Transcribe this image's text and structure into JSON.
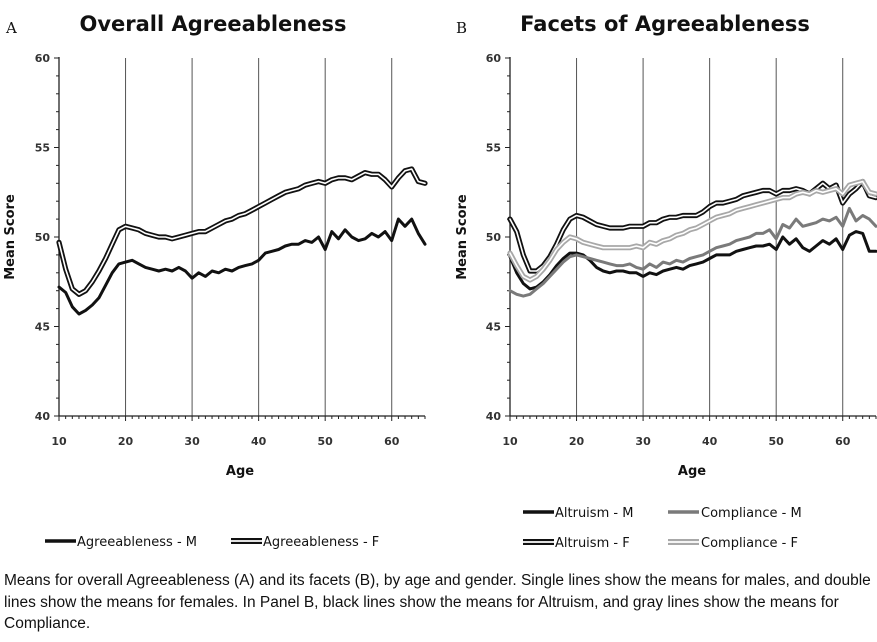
{
  "chart_data": [
    {
      "type": "line",
      "panel_label": "A",
      "title": "Overall Agreeableness",
      "xlabel": "Age",
      "ylabel": "Mean Score",
      "xlim": [
        10,
        65
      ],
      "ylim": [
        40,
        60
      ],
      "xticks": [
        10,
        20,
        30,
        40,
        50,
        60
      ],
      "yticks": [
        40,
        45,
        50,
        55,
        60
      ],
      "vgrid": [
        20,
        30,
        40,
        50,
        60
      ],
      "legend": "bottom",
      "series": [
        {
          "name": "Agreeableness - M",
          "color": "#111111",
          "style": "single",
          "x": [
            10,
            11,
            12,
            13,
            14,
            15,
            16,
            17,
            18,
            19,
            20,
            21,
            22,
            23,
            24,
            25,
            26,
            27,
            28,
            29,
            30,
            31,
            32,
            33,
            34,
            35,
            36,
            37,
            38,
            39,
            40,
            41,
            42,
            43,
            44,
            45,
            46,
            47,
            48,
            49,
            50,
            51,
            52,
            53,
            54,
            55,
            56,
            57,
            58,
            59,
            60,
            61,
            62,
            63,
            64,
            65
          ],
          "y": [
            47.2,
            46.9,
            46.1,
            45.7,
            45.9,
            46.2,
            46.6,
            47.3,
            48.0,
            48.5,
            48.6,
            48.7,
            48.5,
            48.3,
            48.2,
            48.1,
            48.2,
            48.1,
            48.3,
            48.1,
            47.7,
            48.0,
            47.8,
            48.1,
            48.0,
            48.2,
            48.1,
            48.3,
            48.4,
            48.5,
            48.7,
            49.1,
            49.2,
            49.3,
            49.5,
            49.6,
            49.6,
            49.8,
            49.7,
            50.0,
            49.3,
            50.3,
            49.9,
            50.4,
            50.0,
            49.8,
            49.9,
            50.2,
            50.0,
            50.3,
            49.8,
            51.0,
            50.6,
            51.0,
            50.2,
            49.6
          ]
        },
        {
          "name": "Agreeableness - F",
          "color": "#111111",
          "style": "double",
          "x": [
            10,
            11,
            12,
            13,
            14,
            15,
            16,
            17,
            18,
            19,
            20,
            21,
            22,
            23,
            24,
            25,
            26,
            27,
            28,
            29,
            30,
            31,
            32,
            33,
            34,
            35,
            36,
            37,
            38,
            39,
            40,
            41,
            42,
            43,
            44,
            45,
            46,
            47,
            48,
            49,
            50,
            51,
            52,
            53,
            54,
            55,
            56,
            57,
            58,
            59,
            60,
            61,
            62,
            63,
            64,
            65
          ],
          "y": [
            49.7,
            48.2,
            47.1,
            46.8,
            47.0,
            47.5,
            48.1,
            48.8,
            49.6,
            50.4,
            50.6,
            50.5,
            50.4,
            50.2,
            50.1,
            50.0,
            50.0,
            49.9,
            50.0,
            50.1,
            50.2,
            50.3,
            50.3,
            50.5,
            50.7,
            50.9,
            51.0,
            51.2,
            51.3,
            51.5,
            51.7,
            51.9,
            52.1,
            52.3,
            52.5,
            52.6,
            52.7,
            52.9,
            53.0,
            53.1,
            53.0,
            53.2,
            53.3,
            53.3,
            53.2,
            53.4,
            53.6,
            53.5,
            53.5,
            53.2,
            52.8,
            53.3,
            53.7,
            53.8,
            53.1,
            53.0
          ]
        }
      ]
    },
    {
      "type": "line",
      "panel_label": "B",
      "title": "Facets of Agreeableness",
      "xlabel": "Age",
      "ylabel": "Mean Score",
      "xlim": [
        10,
        65
      ],
      "ylim": [
        40,
        60
      ],
      "xticks": [
        10,
        20,
        30,
        40,
        50,
        60
      ],
      "yticks": [
        40,
        45,
        50,
        55,
        60
      ],
      "vgrid": [
        20,
        30,
        40,
        50,
        60
      ],
      "legend": "bottom",
      "series": [
        {
          "name": "Altruism - M",
          "color": "#111111",
          "style": "single",
          "x": [
            10,
            11,
            12,
            13,
            14,
            15,
            16,
            17,
            18,
            19,
            20,
            21,
            22,
            23,
            24,
            25,
            26,
            27,
            28,
            29,
            30,
            31,
            32,
            33,
            34,
            35,
            36,
            37,
            38,
            39,
            40,
            41,
            42,
            43,
            44,
            45,
            46,
            47,
            48,
            49,
            50,
            51,
            52,
            53,
            54,
            55,
            56,
            57,
            58,
            59,
            60,
            61,
            62,
            63,
            64,
            65
          ],
          "y": [
            48.9,
            48.0,
            47.4,
            47.1,
            47.2,
            47.5,
            47.9,
            48.4,
            48.8,
            49.1,
            49.1,
            49.0,
            48.7,
            48.3,
            48.1,
            48.0,
            48.1,
            48.1,
            48.0,
            48.0,
            47.8,
            48.0,
            47.9,
            48.1,
            48.2,
            48.3,
            48.2,
            48.4,
            48.5,
            48.6,
            48.8,
            49.0,
            49.0,
            49.0,
            49.2,
            49.3,
            49.4,
            49.5,
            49.5,
            49.6,
            49.3,
            50.0,
            49.6,
            49.9,
            49.4,
            49.2,
            49.5,
            49.8,
            49.6,
            49.9,
            49.3,
            50.1,
            50.3,
            50.2,
            49.2,
            49.2
          ]
        },
        {
          "name": "Compliance - M",
          "color": "#7a7a7a",
          "style": "single",
          "x": [
            10,
            11,
            12,
            13,
            14,
            15,
            16,
            17,
            18,
            19,
            20,
            21,
            22,
            23,
            24,
            25,
            26,
            27,
            28,
            29,
            30,
            31,
            32,
            33,
            34,
            35,
            36,
            37,
            38,
            39,
            40,
            41,
            42,
            43,
            44,
            45,
            46,
            47,
            48,
            49,
            50,
            51,
            52,
            53,
            54,
            55,
            56,
            57,
            58,
            59,
            60,
            61,
            62,
            63,
            64,
            65
          ],
          "y": [
            47.0,
            46.8,
            46.7,
            46.8,
            47.1,
            47.4,
            47.8,
            48.2,
            48.6,
            48.9,
            49.0,
            48.9,
            48.8,
            48.7,
            48.6,
            48.5,
            48.4,
            48.4,
            48.5,
            48.3,
            48.2,
            48.5,
            48.3,
            48.6,
            48.5,
            48.7,
            48.6,
            48.8,
            48.9,
            49.0,
            49.2,
            49.4,
            49.5,
            49.6,
            49.8,
            49.9,
            50.0,
            50.2,
            50.2,
            50.4,
            49.9,
            50.7,
            50.5,
            51.0,
            50.6,
            50.7,
            50.8,
            51.0,
            50.9,
            51.1,
            50.6,
            51.6,
            50.9,
            51.2,
            51.0,
            50.6
          ]
        },
        {
          "name": "Altruism - F",
          "color": "#111111",
          "style": "double",
          "x": [
            10,
            11,
            12,
            13,
            14,
            15,
            16,
            17,
            18,
            19,
            20,
            21,
            22,
            23,
            24,
            25,
            26,
            27,
            28,
            29,
            30,
            31,
            32,
            33,
            34,
            35,
            36,
            37,
            38,
            39,
            40,
            41,
            42,
            43,
            44,
            45,
            46,
            47,
            48,
            49,
            50,
            51,
            52,
            53,
            54,
            55,
            56,
            57,
            58,
            59,
            60,
            61,
            62,
            63,
            64,
            65
          ],
          "y": [
            51.0,
            50.3,
            49.0,
            48.1,
            48.1,
            48.4,
            48.9,
            49.6,
            50.4,
            51.0,
            51.2,
            51.1,
            50.9,
            50.7,
            50.6,
            50.5,
            50.5,
            50.5,
            50.6,
            50.6,
            50.6,
            50.8,
            50.8,
            51.0,
            51.1,
            51.1,
            51.2,
            51.2,
            51.2,
            51.4,
            51.7,
            51.9,
            51.9,
            52.0,
            52.1,
            52.3,
            52.4,
            52.5,
            52.6,
            52.6,
            52.4,
            52.6,
            52.6,
            52.7,
            52.6,
            52.4,
            52.7,
            53.0,
            52.7,
            52.9,
            51.9,
            52.4,
            52.7,
            53.1,
            52.3,
            52.2
          ]
        },
        {
          "name": "Compliance - F",
          "color": "#a8a8a8",
          "style": "double",
          "x": [
            10,
            11,
            12,
            13,
            14,
            15,
            16,
            17,
            18,
            19,
            20,
            21,
            22,
            23,
            24,
            25,
            26,
            27,
            28,
            29,
            30,
            31,
            32,
            33,
            34,
            35,
            36,
            37,
            38,
            39,
            40,
            41,
            42,
            43,
            44,
            45,
            46,
            47,
            48,
            49,
            50,
            51,
            52,
            53,
            54,
            55,
            56,
            57,
            58,
            59,
            60,
            61,
            62,
            63,
            64,
            65
          ],
          "y": [
            49.1,
            48.4,
            47.8,
            47.6,
            47.8,
            48.2,
            48.7,
            49.3,
            49.7,
            50.0,
            49.9,
            49.7,
            49.6,
            49.5,
            49.4,
            49.4,
            49.4,
            49.4,
            49.4,
            49.5,
            49.4,
            49.7,
            49.6,
            49.8,
            49.9,
            50.1,
            50.2,
            50.4,
            50.5,
            50.7,
            50.9,
            51.1,
            51.2,
            51.3,
            51.5,
            51.6,
            51.7,
            51.8,
            51.9,
            52.0,
            52.1,
            52.2,
            52.2,
            52.4,
            52.5,
            52.4,
            52.6,
            52.5,
            52.6,
            52.7,
            52.4,
            52.9,
            53.0,
            53.1,
            52.5,
            52.4
          ]
        }
      ]
    }
  ],
  "legend_a": [
    {
      "name": "Agreeableness - M",
      "style": "single",
      "color": "#111111"
    },
    {
      "name": "Agreeableness - F",
      "style": "double",
      "color": "#111111"
    }
  ],
  "legend_b": [
    {
      "name": "Altruism - M",
      "style": "single",
      "color": "#111111"
    },
    {
      "name": "Compliance - M",
      "style": "single",
      "color": "#7a7a7a"
    },
    {
      "name": "Altruism - F",
      "style": "double",
      "color": "#111111"
    },
    {
      "name": "Compliance - F",
      "style": "double",
      "color": "#a8a8a8"
    }
  ],
  "caption": "Means for overall Agreeableness (A) and its facets (B), by age and gender. Single lines show the means for males, and double lines show the means for females. In Panel B, black lines show the means for Altruism, and gray lines show the means for Compliance."
}
